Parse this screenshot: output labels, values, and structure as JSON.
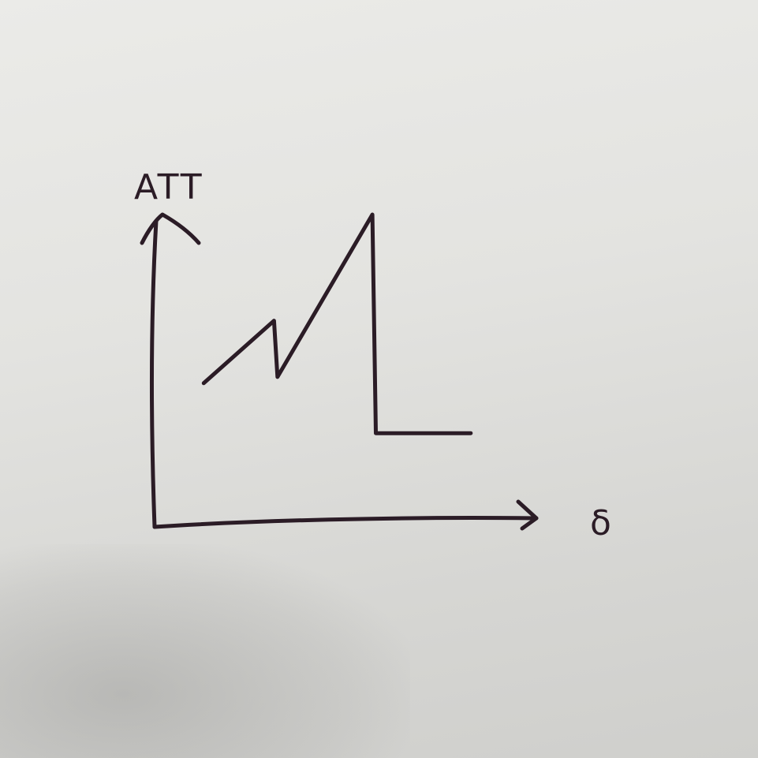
{
  "chart_data": {
    "type": "line",
    "title": "",
    "xlabel": "δ",
    "ylabel": "ATT",
    "grid": false,
    "legend": "none",
    "axis_style": "hand-drawn arrows",
    "xlim": [
      0,
      10
    ],
    "ylim": [
      0,
      10
    ],
    "series": [
      {
        "x": [
          1.4,
          3.4,
          3.5,
          6.2,
          6.3,
          9.0
        ],
        "y": [
          4.6,
          6.6,
          4.8,
          10.0,
          3.0,
          3.0
        ]
      }
    ]
  },
  "colors": {
    "ink": "#2b1c26",
    "paper": "#e6e6e3"
  }
}
